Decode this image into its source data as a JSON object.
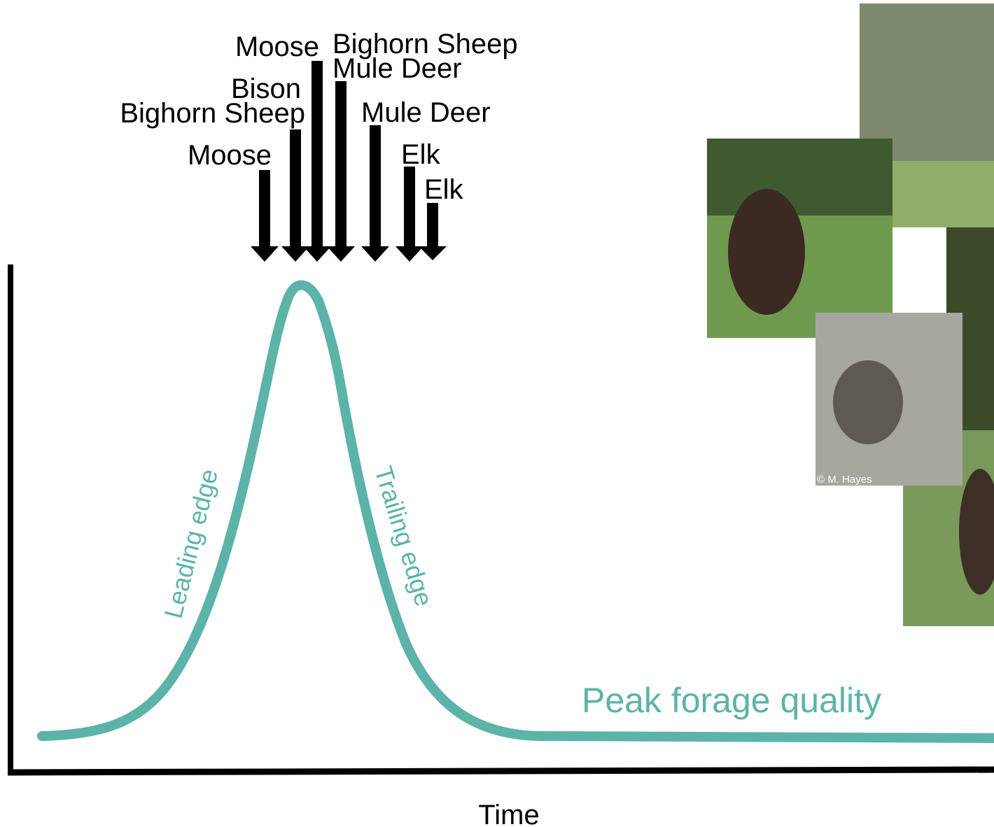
{
  "labels": [
    "Moose",
    "Bighorn Sheep",
    "Bison",
    "Moose",
    "Bighorn Sheep",
    "Mule Deer",
    "Mule Deer",
    "Elk",
    "Elk"
  ],
  "curve_labels": {
    "leading": "Leading edge",
    "trailing": "Trailing edge",
    "peak": "Peak forage quality"
  },
  "x_axis_label": "Time",
  "photo_credit": "© M. Hayes"
}
